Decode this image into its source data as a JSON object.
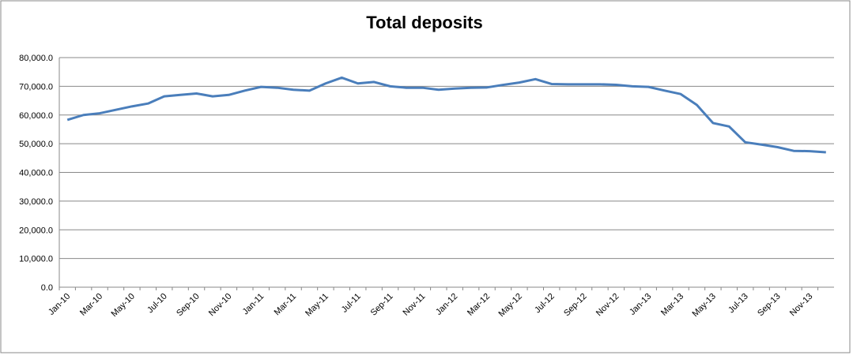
{
  "chart_data": {
    "type": "line",
    "title": "Total deposits",
    "categories": [
      "Jan-10",
      null,
      "Mar-10",
      null,
      "May-10",
      null,
      "Jul-10",
      null,
      "Sep-10",
      null,
      "Nov-10",
      null,
      "Jan-11",
      null,
      "Mar-11",
      null,
      "May-11",
      null,
      "Jul-11",
      null,
      "Sep-11",
      null,
      "Nov-11",
      null,
      "Jan-12",
      null,
      "Mar-12",
      null,
      "May-12",
      null,
      "Jul-12",
      null,
      "Sep-12",
      null,
      "Nov-12",
      null,
      "Jan-13",
      null,
      "Mar-13",
      null,
      "May-13",
      null,
      "Jul-13",
      null,
      "Sep-13",
      null,
      "Nov-13",
      null
    ],
    "values": [
      58300,
      60000,
      60600,
      61800,
      63000,
      64000,
      66500,
      67000,
      67500,
      66500,
      67000,
      68500,
      69800,
      69500,
      68800,
      68500,
      71000,
      73000,
      71000,
      71500,
      70000,
      69500,
      69500,
      68800,
      69200,
      69500,
      69600,
      70500,
      71300,
      72500,
      70800,
      70700,
      70700,
      70700,
      70500,
      70000,
      69800,
      68500,
      67300,
      63500,
      57200,
      56000,
      50500,
      49700,
      48800,
      47500,
      47400,
      47000
    ],
    "color": "#4a7ebb",
    "ylim": [
      0,
      80000
    ],
    "yticks": [
      {
        "value": 0,
        "label": "0.0"
      },
      {
        "value": 10000,
        "label": "10,000.0"
      },
      {
        "value": 20000,
        "label": "20,000.0"
      },
      {
        "value": 30000,
        "label": "30,000.0"
      },
      {
        "value": 40000,
        "label": "40,000.0"
      },
      {
        "value": 50000,
        "label": "50,000.0"
      },
      {
        "value": 60000,
        "label": "60,000.0"
      },
      {
        "value": 70000,
        "label": "70,000.0"
      },
      {
        "value": 80000,
        "label": "80,000.0"
      }
    ],
    "grid": true
  }
}
